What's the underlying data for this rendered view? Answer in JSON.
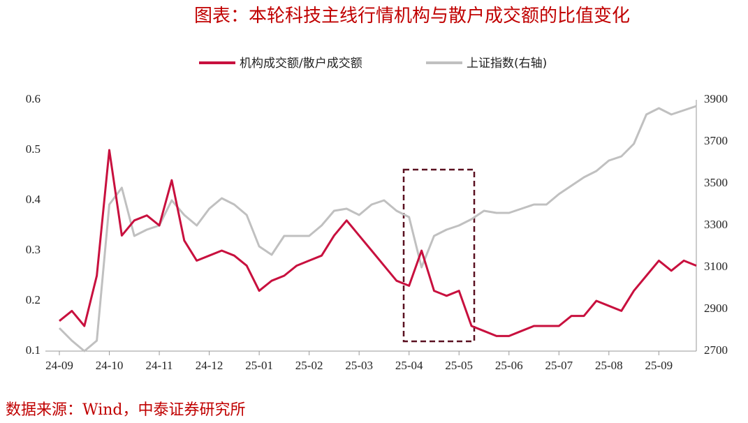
{
  "chart_data": {
    "type": "line",
    "title": "图表：本轮科技主线行情机构与散户成交额的比值变化",
    "source": "数据来源：Wind，中泰证券研究所",
    "categories": [
      "24-09",
      null,
      null,
      null,
      "24-10",
      null,
      null,
      null,
      "24-11",
      null,
      null,
      null,
      "24-12",
      null,
      null,
      null,
      "25-01",
      null,
      null,
      null,
      "25-02",
      null,
      null,
      null,
      "25-03",
      null,
      null,
      null,
      "25-04",
      null,
      null,
      null,
      "25-05",
      null,
      null,
      null,
      "25-06",
      null,
      null,
      null,
      "25-07",
      null,
      null,
      null,
      "25-08",
      null,
      null,
      null,
      "25-09",
      null,
      null,
      null
    ],
    "series": [
      {
        "name": "机构成交额/散户成交额",
        "color": "#c8103e",
        "axis": "y",
        "values": [
          0.16,
          0.18,
          0.15,
          0.25,
          0.5,
          0.33,
          0.36,
          0.37,
          0.35,
          0.44,
          0.32,
          0.28,
          0.29,
          0.3,
          0.29,
          0.27,
          0.22,
          0.24,
          0.25,
          0.27,
          0.28,
          0.29,
          0.33,
          0.36,
          0.33,
          0.3,
          0.27,
          0.24,
          0.23,
          0.3,
          0.22,
          0.21,
          0.22,
          0.15,
          0.14,
          0.13,
          0.13,
          0.14,
          0.15,
          0.15,
          0.15,
          0.17,
          0.17,
          0.2,
          0.19,
          0.18,
          0.22,
          0.25,
          0.28,
          0.26,
          0.28,
          0.27
        ]
      },
      {
        "name": "上证指数(右轴)",
        "color": "#c0c0c0",
        "axis": "y2",
        "values": [
          2810,
          2750,
          2700,
          2750,
          3400,
          3480,
          3250,
          3280,
          3300,
          3420,
          3350,
          3300,
          3380,
          3430,
          3400,
          3350,
          3200,
          3160,
          3250,
          3250,
          3250,
          3300,
          3370,
          3380,
          3350,
          3400,
          3420,
          3370,
          3340,
          3100,
          3250,
          3280,
          3300,
          3330,
          3370,
          3360,
          3360,
          3380,
          3400,
          3400,
          3450,
          3490,
          3530,
          3560,
          3610,
          3630,
          3690,
          3830,
          3860,
          3830,
          3850,
          3870
        ]
      }
    ],
    "ylim": [
      0.1,
      0.6
    ],
    "yticks": [
      0.1,
      0.2,
      0.3,
      0.4,
      0.5,
      0.6
    ],
    "y2lim": [
      2700,
      3900
    ],
    "y2ticks": [
      2700,
      2900,
      3100,
      3300,
      3500,
      3700,
      3900
    ],
    "legend": "top"
  }
}
